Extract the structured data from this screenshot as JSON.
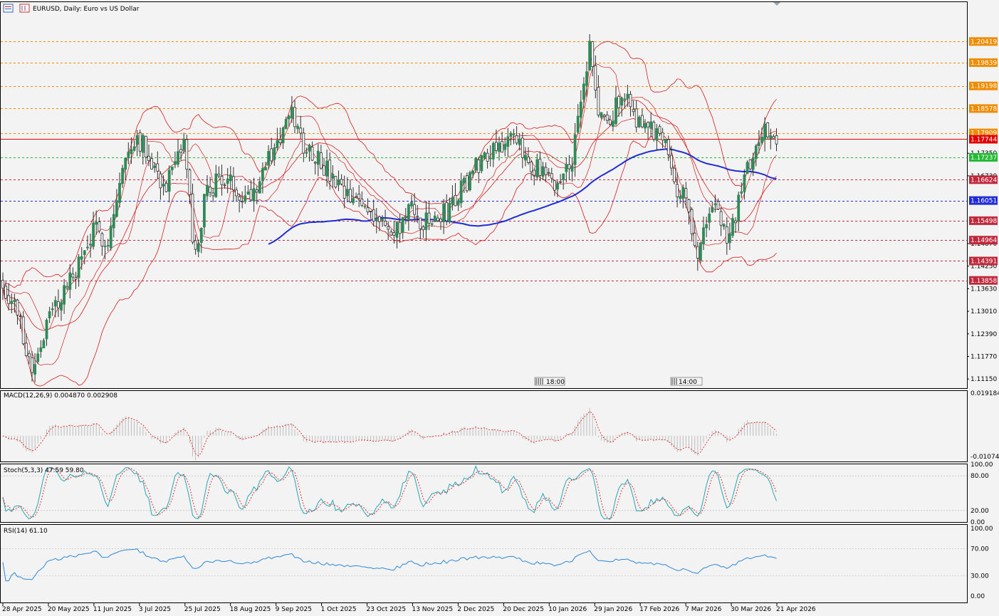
{
  "window": {
    "symbol_title": "EURUSD, Daily:  Euro vs US Dollar",
    "marker_labels": [
      "18:00",
      "14:00"
    ]
  },
  "colors": {
    "background": "#f3f3f3",
    "bull": "#2e8b57",
    "bear": "#2f2f2f",
    "bollinger": "#d51a1a",
    "ma": "#1f2bd6",
    "macd_hist": "#bdbdbd",
    "macd_signal": "#dd2222",
    "stoch_main": "#26a6b5",
    "stoch_signal": "#dd2222",
    "rsi": "#2c88d9",
    "level_orange": "#f08c00",
    "level_green": "#22bb33",
    "level_red": "#c0283c",
    "level_blue": "#1f2bd6",
    "current_price_line": "#e00000"
  },
  "chart_data": [
    {
      "type": "candlestick",
      "title": "EURUSD, Daily:  Euro vs US Dollar",
      "x_tick_labels": [
        "28 Apr 2025",
        "20 May 2025",
        "11 Jun 2025",
        "3 Jul 2025",
        "25 Jul 2025",
        "18 Aug 2025",
        "9 Sep 2025",
        "1 Oct 2025",
        "23 Oct 2025",
        "13 Nov 2025",
        "2 Dec 2025",
        "20 Dec 2025",
        "10 Jan 2026",
        "29 Jan 2026",
        "17 Feb 2026",
        "7 Mar 2026",
        "30 Mar 2026",
        "21 Apr 2026"
      ],
      "y_tick_labels": [
        "1.17350",
        "1.16730",
        "1.14870",
        "1.14250",
        "1.13630",
        "1.13010",
        "1.12390",
        "1.11770",
        "1.11150"
      ],
      "ylim": [
        1.109,
        1.215
      ],
      "current_price": "1.17744",
      "levels": [
        {
          "label": "1.20419",
          "value": 1.20419,
          "color": "orange"
        },
        {
          "label": "1.19839",
          "value": 1.19839,
          "color": "orange"
        },
        {
          "label": "1.19198",
          "value": 1.19198,
          "color": "orange"
        },
        {
          "label": "1.18578",
          "value": 1.18578,
          "color": "orange"
        },
        {
          "label": "1.17909",
          "value": 1.17909,
          "color": "orange"
        },
        {
          "label": "1.17237",
          "value": 1.17237,
          "color": "green"
        },
        {
          "label": "1.16624",
          "value": 1.16624,
          "color": "red"
        },
        {
          "label": "1.16051",
          "value": 1.16051,
          "color": "blue"
        },
        {
          "label": "1.15498",
          "value": 1.15498,
          "color": "red"
        },
        {
          "label": "1.14964",
          "value": 1.14964,
          "color": "red"
        },
        {
          "label": "1.14391",
          "value": 1.14391,
          "color": "red"
        },
        {
          "label": "1.13858",
          "value": 1.13858,
          "color": "red"
        }
      ],
      "close_path": [
        {
          "date": "2025-04-28",
          "close": 1.138
        },
        {
          "date": "2025-05-05",
          "close": 1.13
        },
        {
          "date": "2025-05-12",
          "close": 1.114
        },
        {
          "date": "2025-05-20",
          "close": 1.128
        },
        {
          "date": "2025-05-27",
          "close": 1.135
        },
        {
          "date": "2025-06-03",
          "close": 1.142
        },
        {
          "date": "2025-06-11",
          "close": 1.152
        },
        {
          "date": "2025-06-18",
          "close": 1.15
        },
        {
          "date": "2025-06-25",
          "close": 1.169
        },
        {
          "date": "2025-07-01",
          "close": 1.179
        },
        {
          "date": "2025-07-08",
          "close": 1.173
        },
        {
          "date": "2025-07-15",
          "close": 1.164
        },
        {
          "date": "2025-07-21",
          "close": 1.17
        },
        {
          "date": "2025-07-25",
          "close": 1.177
        },
        {
          "date": "2025-07-30",
          "close": 1.143
        },
        {
          "date": "2025-08-05",
          "close": 1.162
        },
        {
          "date": "2025-08-12",
          "close": 1.167
        },
        {
          "date": "2025-08-20",
          "close": 1.164
        },
        {
          "date": "2025-08-27",
          "close": 1.162
        },
        {
          "date": "2025-09-02",
          "close": 1.168
        },
        {
          "date": "2025-09-09",
          "close": 1.176
        },
        {
          "date": "2025-09-17",
          "close": 1.184
        },
        {
          "date": "2025-09-22",
          "close": 1.176
        },
        {
          "date": "2025-09-29",
          "close": 1.173
        },
        {
          "date": "2025-10-06",
          "close": 1.166
        },
        {
          "date": "2025-10-13",
          "close": 1.161
        },
        {
          "date": "2025-10-20",
          "close": 1.16
        },
        {
          "date": "2025-10-27",
          "close": 1.157
        },
        {
          "date": "2025-11-04",
          "close": 1.15
        },
        {
          "date": "2025-11-11",
          "close": 1.158
        },
        {
          "date": "2025-11-18",
          "close": 1.154
        },
        {
          "date": "2025-11-25",
          "close": 1.156
        },
        {
          "date": "2025-12-02",
          "close": 1.162
        },
        {
          "date": "2025-12-09",
          "close": 1.17
        },
        {
          "date": "2025-12-16",
          "close": 1.176
        },
        {
          "date": "2025-12-23",
          "close": 1.177
        },
        {
          "date": "2025-12-30",
          "close": 1.173
        },
        {
          "date": "2026-01-06",
          "close": 1.168
        },
        {
          "date": "2026-01-12",
          "close": 1.164
        },
        {
          "date": "2026-01-19",
          "close": 1.171
        },
        {
          "date": "2026-01-23",
          "close": 1.185
        },
        {
          "date": "2026-01-27",
          "close": 1.203
        },
        {
          "date": "2026-01-30",
          "close": 1.186
        },
        {
          "date": "2026-02-04",
          "close": 1.18
        },
        {
          "date": "2026-02-09",
          "close": 1.191
        },
        {
          "date": "2026-02-13",
          "close": 1.186
        },
        {
          "date": "2026-02-17",
          "close": 1.182
        },
        {
          "date": "2026-02-23",
          "close": 1.179
        },
        {
          "date": "2026-02-27",
          "close": 1.179
        },
        {
          "date": "2026-03-03",
          "close": 1.165
        },
        {
          "date": "2026-03-09",
          "close": 1.158
        },
        {
          "date": "2026-03-13",
          "close": 1.144
        },
        {
          "date": "2026-03-18",
          "close": 1.156
        },
        {
          "date": "2026-03-23",
          "close": 1.16
        },
        {
          "date": "2026-03-27",
          "close": 1.149
        },
        {
          "date": "2026-04-01",
          "close": 1.156
        },
        {
          "date": "2026-04-06",
          "close": 1.168
        },
        {
          "date": "2026-04-10",
          "close": 1.174
        },
        {
          "date": "2026-04-15",
          "close": 1.18
        },
        {
          "date": "2026-04-21",
          "close": 1.178
        }
      ],
      "indicators": [
        "Bollinger Bands (2 sets)",
        "Moving Average"
      ]
    },
    {
      "type": "histogram",
      "title": "MACD(12,26,9) 0.004870 0.002908",
      "y_tick_labels": [
        "0.019184",
        "-0.010743"
      ],
      "ylim": [
        -0.0115,
        0.02
      ]
    },
    {
      "type": "line",
      "title": "Stoch(5,3,3) 47.59 59.80",
      "y_tick_labels": [
        "100.00",
        "80.00",
        "20.00",
        "0.00"
      ],
      "ylim": [
        0,
        100
      ],
      "levels": [
        80,
        20
      ]
    },
    {
      "type": "line",
      "title": "RSI(14) 61.10",
      "y_tick_labels": [
        "100.00",
        "70.00",
        "30.00",
        "0.00"
      ],
      "ylim": [
        0,
        100
      ],
      "levels": [
        70,
        30
      ]
    }
  ]
}
